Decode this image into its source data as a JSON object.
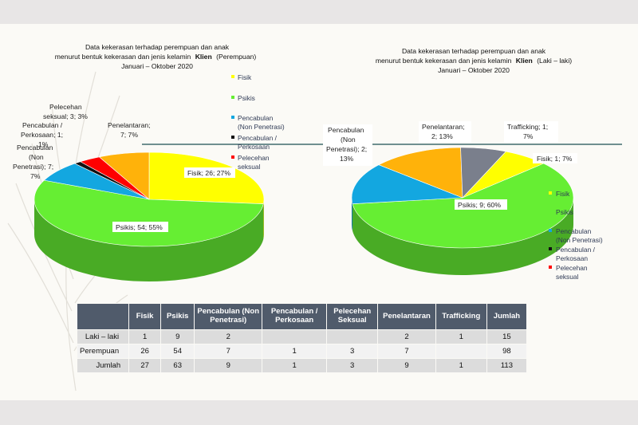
{
  "chart_data": [
    {
      "type": "pie",
      "title_lines": [
        "Data kekerasan terhadap perempuan dan  anak",
        "menurut bentuk kekerasan dan jenis kelamin",
        "Klien",
        "(Perempuan)",
        "Januari – Oktober 2020"
      ],
      "slices": [
        {
          "name": "Fisik",
          "value": 26,
          "percent": 27,
          "color": "#ffff00",
          "label_lines": [
            "Fisik; 26; 27%"
          ]
        },
        {
          "name": "Psikis",
          "value": 54,
          "percent": 55,
          "color": "#66ee33",
          "label_lines": [
            "Psikis; 54; 55%"
          ]
        },
        {
          "name": "Pencabulan (Non Penetrasi)",
          "value": 7,
          "percent": 7,
          "color": "#13a7e0",
          "label_lines": [
            "Pencabulan",
            "(Non",
            "Penetrasi); 7;",
            "7%"
          ]
        },
        {
          "name": "Pencabulan / Perkosaan",
          "value": 1,
          "percent": 1,
          "color": "#111111",
          "label_lines": [
            "Pencabulan /",
            "Perkosaan; 1;",
            "1%"
          ]
        },
        {
          "name": "Pelecehan seksual",
          "value": 3,
          "percent": 3,
          "color": "#ff0000",
          "label_lines": [
            "Pelecehan",
            "seksual; 3; 3%"
          ]
        },
        {
          "name": "Penelantaran",
          "value": 7,
          "percent": 7,
          "color": "#ffb20a",
          "label_lines": [
            "Penelantaran;",
            "7; 7%"
          ]
        }
      ],
      "legend": {
        "placement": "right",
        "items": [
          {
            "lines": [
              "Fisik"
            ],
            "color": "#ffff00"
          },
          {
            "lines": [
              "Psikis"
            ],
            "color": "#66ee33"
          },
          {
            "lines": [
              "Pencabulan",
              "(Non Penetrasi)"
            ],
            "color": "#13a7e0"
          },
          {
            "lines": [
              "Pencabulan /",
              "Perkosaan"
            ],
            "color": "#111111"
          },
          {
            "lines": [
              "Pelecehan",
              "seksual"
            ],
            "color": "#ff0000"
          }
        ]
      }
    },
    {
      "type": "pie",
      "title_lines": [
        "Data kekerasan terhadap perempuan dan  anak",
        "menurut bentuk kekerasan dan jenis kelamin",
        "Klien",
        "(Laki – laki)",
        "Januari – Oktober 2020"
      ],
      "slices": [
        {
          "name": "Fisik",
          "value": 1,
          "percent": 7,
          "color": "#ffff00",
          "label_lines": [
            "Fisik; 1; 7%"
          ]
        },
        {
          "name": "Psikis",
          "value": 9,
          "percent": 60,
          "color": "#66ee33",
          "label_lines": [
            "Psikis; 9; 60%"
          ]
        },
        {
          "name": "Pencabulan (Non Penetrasi)",
          "value": 2,
          "percent": 13,
          "color": "#13a7e0",
          "label_lines": [
            "Pencabulan",
            "(Non",
            "Penetrasi); 2;",
            "13%"
          ]
        },
        {
          "name": "Penelantaran",
          "value": 2,
          "percent": 13,
          "color": "#ffb20a",
          "label_lines": [
            "Penelantaran;",
            "2; 13%"
          ]
        },
        {
          "name": "Trafficking",
          "value": 1,
          "percent": 7,
          "color": "#7a7f8c",
          "label_lines": [
            "Trafficking; 1;",
            "7%"
          ]
        }
      ],
      "legend": {
        "placement": "right",
        "items": [
          {
            "lines": [
              "Fisik"
            ],
            "color": "#ffff00"
          },
          {
            "lines": [
              "Psikis"
            ],
            "color": "#66ee33"
          },
          {
            "lines": [
              "Pencabulan",
              "(Non Penetrasi)"
            ],
            "color": "#13a7e0"
          },
          {
            "lines": [
              "Pencabulan /",
              "Perkosaan"
            ],
            "color": "#111111"
          },
          {
            "lines": [
              "Pelecehan",
              "seksual"
            ],
            "color": "#ff0000"
          }
        ]
      }
    },
    {
      "type": "table",
      "columns": [
        "",
        "Fisik",
        "Psikis",
        "Pencabulan (Non Penetrasi)",
        "Pencabulan / Perkosaan",
        "Pelecehan Seksual",
        "Penelantaran",
        "Trafficking",
        "Jumlah"
      ],
      "rows": [
        [
          "Laki – laki",
          "1",
          "9",
          "2",
          "",
          "",
          "2",
          "1",
          "15"
        ],
        [
          "Perempuan",
          "26",
          "54",
          "7",
          "1",
          "3",
          "7",
          "",
          "98"
        ],
        [
          "Jumlah",
          "27",
          "63",
          "9",
          "1",
          "3",
          "9",
          "1",
          "113"
        ]
      ]
    }
  ]
}
